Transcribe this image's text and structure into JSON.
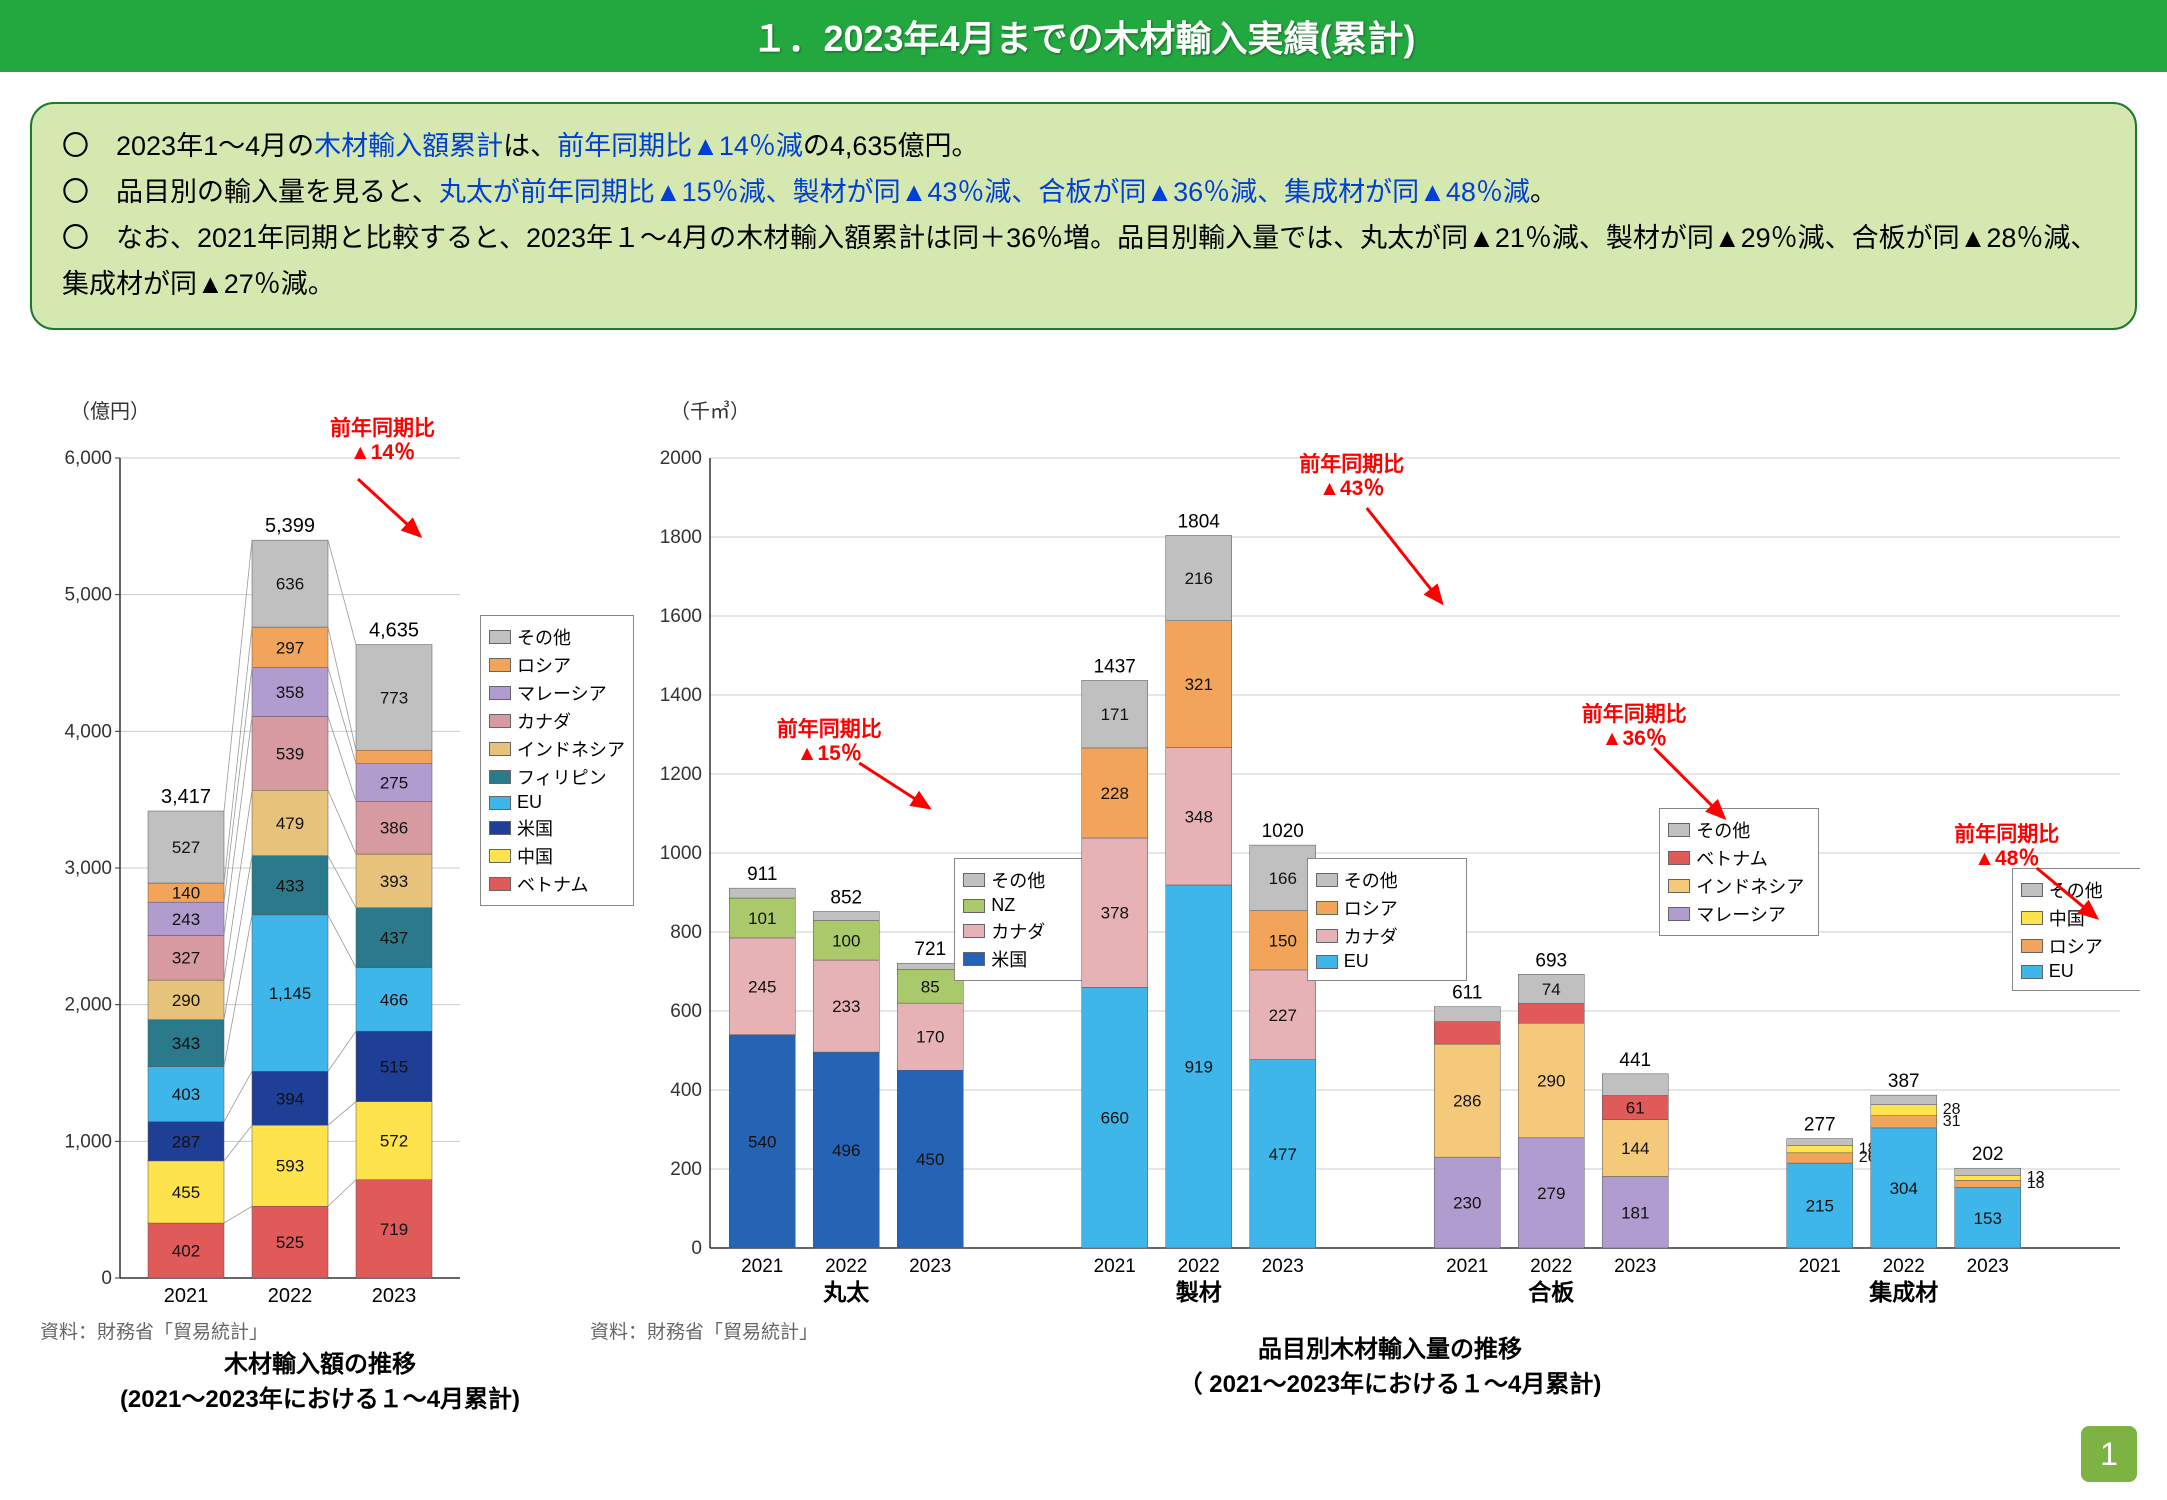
{
  "title": "１．2023年4月までの木材輸入実績(累計)",
  "summary": {
    "l1a": "〇　2023年1～4月の",
    "l1b": "木材輸入額累計",
    "l1c": "は、",
    "l1d": "前年同期比▲14％減",
    "l1e": "の4,635億円。",
    "l2a": "〇　品目別の輸入量を見ると、",
    "l2b": "丸太が前年同期比▲15％減、製材が同▲43％減、合板が同▲36％減、集成材が同▲48％減",
    "l2c": "。",
    "l3": "〇　なお、2021年同期と比較すると、2023年１～4月の木材輸入額累計は同＋36％増。品目別輸入量では、丸太が同▲21％減、製材が同▲29％減、合板が同▲28％減、集成材が同▲27％減。"
  },
  "source": "資料：財務省「貿易統計」",
  "leftChart": {
    "ylabel": "（億円）",
    "yticks": [
      0,
      1000,
      2000,
      3000,
      4000,
      5000,
      6000
    ],
    "ytick_labels": [
      "0",
      "1,000",
      "2,000",
      "3,000",
      "4,000",
      "5,000",
      "6,000"
    ],
    "ylim": [
      0,
      6000
    ],
    "categories": [
      "2021",
      "2022",
      "2023"
    ],
    "totals": [
      "3,417",
      "5,399",
      "4,635"
    ],
    "pct": "前年同期比\n▲14％",
    "title1": "木材輸入額の推移",
    "title2": "(2021～2023年における１～4月累計)",
    "legend": [
      {
        "label": "その他",
        "color": "#c0c0c0"
      },
      {
        "label": "ロシア",
        "color": "#f2a55a"
      },
      {
        "label": "マレーシア",
        "color": "#b19ccf"
      },
      {
        "label": "カナダ",
        "color": "#d79aa0"
      },
      {
        "label": "インドネシア",
        "color": "#e6c27a"
      },
      {
        "label": "フィリピン",
        "color": "#2b7a8c"
      },
      {
        "label": "EU",
        "color": "#3fb6ea"
      },
      {
        "label": "米国",
        "color": "#1f3f96"
      },
      {
        "label": "中国",
        "color": "#ffe34d"
      },
      {
        "label": "ベトナム",
        "color": "#e05a5a"
      }
    ],
    "stacks": [
      [
        {
          "v": 402,
          "c": "#e05a5a"
        },
        {
          "v": 455,
          "c": "#ffe34d"
        },
        {
          "v": 287,
          "c": "#1f3f96"
        },
        {
          "v": 403,
          "c": "#3fb6ea"
        },
        {
          "v": 343,
          "c": "#2b7a8c"
        },
        {
          "v": 290,
          "c": "#e6c27a"
        },
        {
          "v": 327,
          "c": "#d79aa0"
        },
        {
          "v": 243,
          "c": "#b19ccf"
        },
        {
          "v": 140,
          "c": "#f2a55a"
        },
        {
          "v": 527,
          "c": "#c0c0c0"
        }
      ],
      [
        {
          "v": 525,
          "c": "#e05a5a"
        },
        {
          "v": 593,
          "c": "#ffe34d"
        },
        {
          "v": 394,
          "c": "#1f3f96"
        },
        {
          "v": 1145,
          "c": "#3fb6ea",
          "lbl": "1,145"
        },
        {
          "v": 433,
          "c": "#2b7a8c"
        },
        {
          "v": 479,
          "c": "#e6c27a"
        },
        {
          "v": 539,
          "c": "#d79aa0"
        },
        {
          "v": 358,
          "c": "#b19ccf"
        },
        {
          "v": 297,
          "c": "#f2a55a"
        },
        {
          "v": 636,
          "c": "#c0c0c0"
        }
      ],
      [
        {
          "v": 719,
          "c": "#e05a5a"
        },
        {
          "v": 572,
          "c": "#ffe34d"
        },
        {
          "v": 515,
          "c": "#1f3f96"
        },
        {
          "v": 466,
          "c": "#3fb6ea"
        },
        {
          "v": 437,
          "c": "#2b7a8c"
        },
        {
          "v": 393,
          "c": "#e6c27a"
        },
        {
          "v": 386,
          "c": "#d79aa0"
        },
        {
          "v": 275,
          "c": "#b19ccf"
        },
        {
          "v": 99,
          "c": "#f2a55a"
        },
        {
          "v": 773,
          "c": "#c0c0c0"
        }
      ]
    ]
  },
  "rightChart": {
    "ylabel": "（千㎥）",
    "yticks": [
      0,
      200,
      400,
      600,
      800,
      1000,
      1200,
      1400,
      1600,
      1800,
      2000
    ],
    "ylim": [
      0,
      2000
    ],
    "title1": "品目別木材輸入量の推移",
    "title2": "（ 2021～2023年における１～4月累計)",
    "groups": [
      {
        "name": "丸太",
        "pct": "前年同期比\n▲15％",
        "years": [
          "2021",
          "2022",
          "2023"
        ],
        "totals": [
          "911",
          "852",
          "721"
        ],
        "legend": [
          {
            "label": "その他",
            "color": "#c0c0c0"
          },
          {
            "label": "NZ",
            "color": "#a9c96b"
          },
          {
            "label": "カナダ",
            "color": "#e7b2b6"
          },
          {
            "label": "米国",
            "color": "#2563b5"
          }
        ],
        "stacks": [
          [
            {
              "v": 540,
              "c": "#2563b5"
            },
            {
              "v": 245,
              "c": "#e7b2b6"
            },
            {
              "v": 101,
              "c": "#a9c96b"
            },
            {
              "v": 25,
              "c": "#c0c0c0"
            }
          ],
          [
            {
              "v": 496,
              "c": "#2563b5"
            },
            {
              "v": 233,
              "c": "#e7b2b6"
            },
            {
              "v": 100,
              "c": "#a9c96b"
            },
            {
              "v": 23,
              "c": "#c0c0c0"
            }
          ],
          [
            {
              "v": 450,
              "c": "#2563b5"
            },
            {
              "v": 170,
              "c": "#e7b2b6"
            },
            {
              "v": 85,
              "c": "#a9c96b"
            },
            {
              "v": 16,
              "c": "#c0c0c0"
            }
          ]
        ]
      },
      {
        "name": "製材",
        "pct": "前年同期比\n▲43％",
        "years": [
          "2021",
          "2022",
          "2023"
        ],
        "totals": [
          "1437",
          "1804",
          "1020"
        ],
        "legend": [
          {
            "label": "その他",
            "color": "#c0c0c0"
          },
          {
            "label": "ロシア",
            "color": "#f2a55a"
          },
          {
            "label": "カナダ",
            "color": "#e7b2b6"
          },
          {
            "label": "EU",
            "color": "#3fb6ea"
          }
        ],
        "stacks": [
          [
            {
              "v": 660,
              "c": "#3fb6ea"
            },
            {
              "v": 378,
              "c": "#e7b2b6"
            },
            {
              "v": 228,
              "c": "#f2a55a"
            },
            {
              "v": 171,
              "c": "#c0c0c0"
            }
          ],
          [
            {
              "v": 919,
              "c": "#3fb6ea"
            },
            {
              "v": 348,
              "c": "#e7b2b6"
            },
            {
              "v": 321,
              "c": "#f2a55a"
            },
            {
              "v": 216,
              "c": "#c0c0c0"
            }
          ],
          [
            {
              "v": 477,
              "c": "#3fb6ea"
            },
            {
              "v": 227,
              "c": "#e7b2b6"
            },
            {
              "v": 150,
              "c": "#f2a55a"
            },
            {
              "v": 166,
              "c": "#c0c0c0"
            }
          ]
        ]
      },
      {
        "name": "合板",
        "pct": "前年同期比\n▲36％",
        "years": [
          "2021",
          "2022",
          "2023"
        ],
        "totals": [
          "611",
          "693",
          "441"
        ],
        "legend": [
          {
            "label": "その他",
            "color": "#c0c0c0"
          },
          {
            "label": "ベトナム",
            "color": "#e05a5a"
          },
          {
            "label": "インドネシア",
            "color": "#f5c97a"
          },
          {
            "label": "マレーシア",
            "color": "#b19ccf"
          }
        ],
        "stacks": [
          [
            {
              "v": 230,
              "c": "#b19ccf"
            },
            {
              "v": 286,
              "c": "#f5c97a"
            },
            {
              "v": 57,
              "c": "#e05a5a"
            },
            {
              "v": 38,
              "c": "#c0c0c0"
            }
          ],
          [
            {
              "v": 279,
              "c": "#b19ccf"
            },
            {
              "v": 290,
              "c": "#f5c97a"
            },
            {
              "v": 50,
              "c": "#e05a5a"
            },
            {
              "v": 74,
              "c": "#c0c0c0"
            }
          ],
          [
            {
              "v": 181,
              "c": "#b19ccf"
            },
            {
              "v": 144,
              "c": "#f5c97a"
            },
            {
              "v": 61,
              "c": "#e05a5a"
            },
            {
              "v": 55,
              "c": "#c0c0c0"
            }
          ]
        ]
      },
      {
        "name": "集成材",
        "pct": "前年同期比\n▲48％",
        "years": [
          "2021",
          "2022",
          "2023"
        ],
        "totals": [
          "277",
          "387",
          "202"
        ],
        "legend": [
          {
            "label": "その他",
            "color": "#c0c0c0"
          },
          {
            "label": "中国",
            "color": "#ffe34d"
          },
          {
            "label": "ロシア",
            "color": "#f2a55a"
          },
          {
            "label": "EU",
            "color": "#3fb6ea"
          }
        ],
        "stacks": [
          [
            {
              "v": 215,
              "c": "#3fb6ea"
            },
            {
              "v": 26,
              "c": "#f2a55a",
              "ext": true
            },
            {
              "v": 18,
              "c": "#ffe34d",
              "ext": true
            },
            {
              "v": 18,
              "c": "#c0c0c0"
            }
          ],
          [
            {
              "v": 304,
              "c": "#3fb6ea"
            },
            {
              "v": 31,
              "c": "#f2a55a",
              "ext": true
            },
            {
              "v": 28,
              "c": "#ffe34d",
              "ext": true
            },
            {
              "v": 24,
              "c": "#c0c0c0"
            }
          ],
          [
            {
              "v": 153,
              "c": "#3fb6ea"
            },
            {
              "v": 18,
              "c": "#f2a55a",
              "ext": true
            },
            {
              "v": 13,
              "c": "#ffe34d",
              "ext": true
            },
            {
              "v": 18,
              "c": "#c0c0c0"
            }
          ]
        ]
      }
    ]
  },
  "pageNum": "1"
}
